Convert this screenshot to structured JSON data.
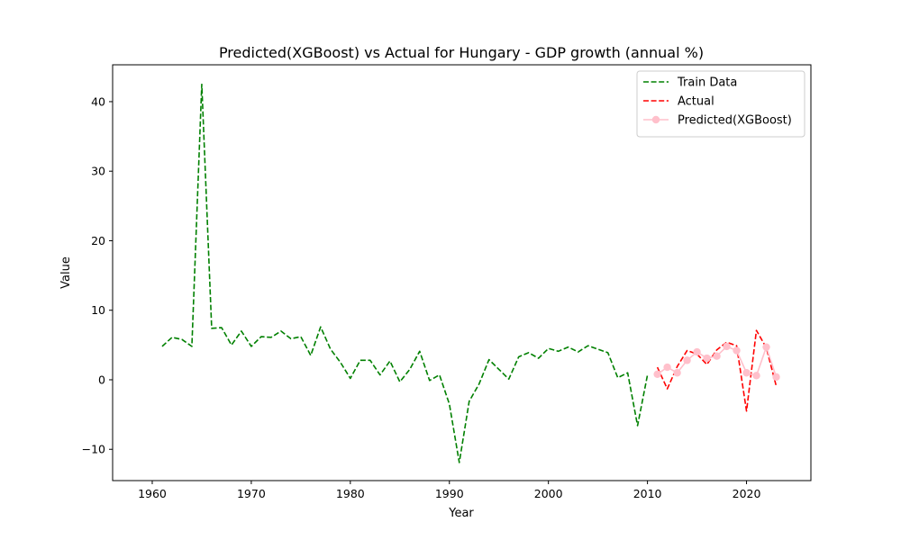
{
  "chart_data": {
    "type": "line",
    "title": "Predicted(XGBoost) vs Actual for Hungary - GDP growth (annual %)",
    "xlabel": "Year",
    "ylabel": "Value",
    "xlim": [
      1956,
      2026.5
    ],
    "ylim": [
      -14.5,
      45.3
    ],
    "xticks": [
      1960,
      1970,
      1980,
      1990,
      2000,
      2010,
      2020
    ],
    "yticks": [
      -10,
      0,
      10,
      20,
      30,
      40
    ],
    "legend_position": "top-right",
    "grid": false,
    "series": [
      {
        "name": "Train Data",
        "color": "#008000",
        "style": "dashed",
        "marker": "none",
        "x": [
          1961,
          1962,
          1963,
          1964,
          1965,
          1966,
          1967,
          1968,
          1969,
          1970,
          1971,
          1972,
          1973,
          1974,
          1975,
          1976,
          1977,
          1978,
          1979,
          1980,
          1981,
          1982,
          1983,
          1984,
          1985,
          1986,
          1987,
          1988,
          1989,
          1990,
          1991,
          1992,
          1993,
          1994,
          1995,
          1996,
          1997,
          1998,
          1999,
          2000,
          2001,
          2002,
          2003,
          2004,
          2005,
          2006,
          2007,
          2008,
          2009,
          2010
        ],
        "values": [
          4.8,
          6.1,
          5.8,
          4.8,
          42.5,
          7.4,
          7.5,
          5.0,
          7.0,
          4.8,
          6.2,
          6.1,
          7.0,
          5.9,
          6.2,
          3.5,
          7.6,
          4.4,
          2.5,
          0.2,
          2.8,
          2.8,
          0.7,
          2.7,
          -0.3,
          1.5,
          4.1,
          -0.1,
          0.7,
          -3.5,
          -11.9,
          -3.1,
          -0.6,
          2.9,
          1.5,
          0.1,
          3.3,
          3.9,
          3.1,
          4.5,
          4.1,
          4.7,
          4.0,
          4.9,
          4.4,
          3.9,
          0.3,
          1.0,
          -6.6,
          0.7
        ]
      },
      {
        "name": "Actual",
        "color": "#ff0000",
        "style": "dashed",
        "marker": "none",
        "x": [
          2011,
          2012,
          2013,
          2014,
          2015,
          2016,
          2017,
          2018,
          2019,
          2020,
          2021,
          2022,
          2023
        ],
        "values": [
          1.8,
          -1.3,
          1.9,
          4.2,
          3.7,
          2.2,
          4.3,
          5.4,
          4.9,
          -4.5,
          7.1,
          4.6,
          -0.9
        ]
      },
      {
        "name": "Predicted(XGBoost)",
        "color": "#ffc0cb",
        "style": "solid",
        "marker": "circle",
        "x": [
          2011,
          2012,
          2013,
          2014,
          2015,
          2016,
          2017,
          2018,
          2019,
          2020,
          2021,
          2022,
          2023
        ],
        "values": [
          0.8,
          1.8,
          1.0,
          2.8,
          4.0,
          3.1,
          3.4,
          4.8,
          4.2,
          1.0,
          0.6,
          4.7,
          0.4
        ]
      }
    ]
  }
}
